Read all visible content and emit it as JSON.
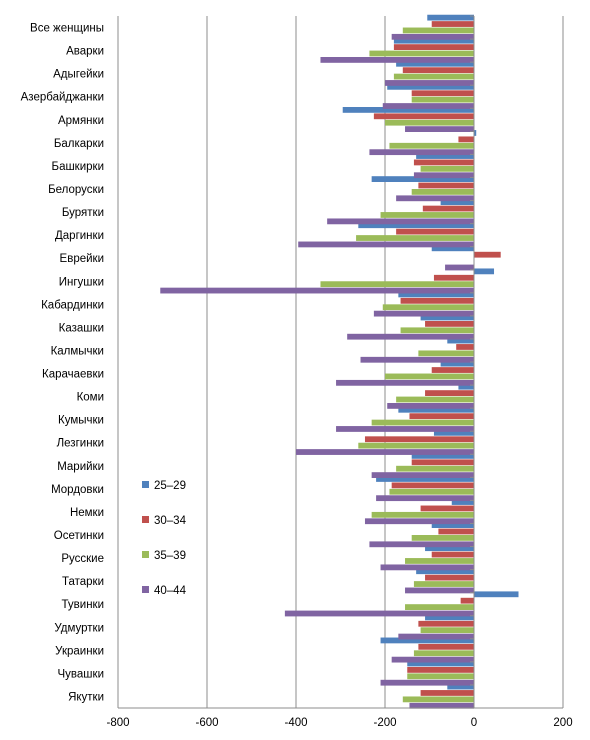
{
  "chart_data": {
    "type": "bar",
    "orientation": "horizontal",
    "categories": [
      "Все женщины",
      "Аварки",
      "Адыгейки",
      "Азербайджанки",
      "Армянки",
      "Балкарки",
      "Башкирки",
      "Белоруски",
      "Бурятки",
      "Даргинки",
      "Еврейки",
      "Ингушки",
      "Кабардинки",
      "Казашки",
      "Калмычки",
      "Карачаевки",
      "Коми",
      "Кумычки",
      "Лезгинки",
      "Марийки",
      "Мордовки",
      "Немки",
      "Осетинки",
      "Русские",
      "Татарки",
      "Тувинки",
      "Удмуртки",
      "Украинки",
      "Чувашки",
      "Якутки"
    ],
    "series": [
      {
        "name": "25–29",
        "color": "#4F81BD",
        "values": [
          -105,
          -180,
          -175,
          -195,
          -295,
          5,
          -130,
          -230,
          -75,
          -260,
          -95,
          45,
          -170,
          -120,
          -60,
          -75,
          -35,
          -170,
          -90,
          -140,
          -220,
          -50,
          -95,
          -110,
          -130,
          100,
          -110,
          -210,
          -150,
          -60
        ]
      },
      {
        "name": "30–34",
        "color": "#C0504D",
        "values": [
          -95,
          -180,
          -160,
          -140,
          -225,
          -35,
          -135,
          -125,
          -115,
          -175,
          60,
          -90,
          -165,
          -110,
          -40,
          -95,
          -110,
          -145,
          -245,
          -140,
          -185,
          -120,
          -80,
          -95,
          -110,
          -30,
          -125,
          -125,
          -150,
          -120
        ]
      },
      {
        "name": "35–39",
        "color": "#9BBB59",
        "values": [
          -160,
          -235,
          -180,
          -140,
          -200,
          -190,
          -120,
          -140,
          -210,
          -265,
          0,
          -345,
          -205,
          -165,
          -125,
          -200,
          -175,
          -230,
          -260,
          -175,
          -190,
          -230,
          -140,
          -155,
          -135,
          -155,
          -120,
          -135,
          -150,
          -160
        ]
      },
      {
        "name": "40–44",
        "color": "#8064A2",
        "values": [
          -185,
          -345,
          -200,
          -205,
          -155,
          -235,
          -135,
          -175,
          -330,
          -395,
          -65,
          -705,
          -225,
          -285,
          -255,
          -310,
          -195,
          -310,
          -400,
          -230,
          -220,
          -245,
          -235,
          -210,
          -155,
          -425,
          -170,
          -185,
          -210,
          -145
        ]
      }
    ],
    "xlim": [
      -800,
      200
    ],
    "xticks": [
      -800,
      -600,
      -400,
      -200,
      0,
      200
    ],
    "grid": "vertical",
    "legend_position": "left"
  }
}
